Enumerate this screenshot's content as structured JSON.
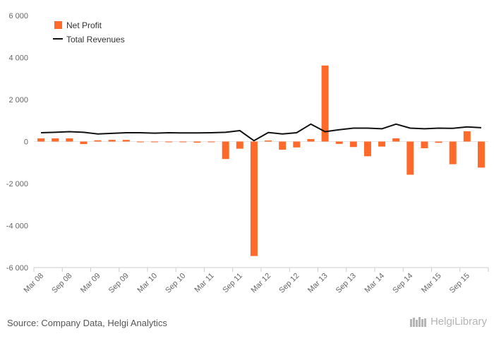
{
  "chart_data": {
    "type": "bar",
    "title": "",
    "xlabel": "",
    "ylabel": "",
    "ylim": [
      -6000,
      6000
    ],
    "yticks": [
      6000,
      4000,
      2000,
      0,
      -2000,
      -4000,
      -6000
    ],
    "ytick_labels": [
      "6 000",
      "4 000",
      "2 000",
      "0",
      "-2 000",
      "-4 000",
      "-6 000"
    ],
    "categories": [
      "Mar 08",
      "Jun 08",
      "Sep 08",
      "Dec 08",
      "Mar 09",
      "Jun 09",
      "Sep 09",
      "Dec 09",
      "Mar 10",
      "Jun 10",
      "Sep 10",
      "Dec 10",
      "Mar 11",
      "Jun 11",
      "Sep 11",
      "Dec 11",
      "Mar 12",
      "Jun 12",
      "Sep 12",
      "Dec 12",
      "Mar 13",
      "Jun 13",
      "Sep 13",
      "Dec 13",
      "Mar 14",
      "Jun 14",
      "Sep 14",
      "Dec 14",
      "Mar 15",
      "Jun 15",
      "Sep 15",
      "Dec 15"
    ],
    "x_tick_labels": [
      "Mar 08",
      "Sep 08",
      "Mar 09",
      "Sep 09",
      "Mar 10",
      "Sep 10",
      "Mar 11",
      "Sep 11",
      "Mar 12",
      "Sep 12",
      "Mar 13",
      "Sep 13",
      "Mar 14",
      "Sep 14",
      "Mar 15",
      "Sep 15"
    ],
    "series": [
      {
        "name": "Net Profit",
        "kind": "bar",
        "color": "#ff6a2b",
        "values": [
          150,
          150,
          150,
          -120,
          60,
          80,
          80,
          0,
          -20,
          -30,
          -30,
          -50,
          -30,
          -830,
          -340,
          -5450,
          50,
          -390,
          -280,
          120,
          3620,
          -110,
          -260,
          -700,
          -240,
          150,
          -1580,
          -320,
          -60,
          -1080,
          490,
          -1240
        ]
      },
      {
        "name": "Total Revenues",
        "kind": "line",
        "color": "#111111",
        "values": [
          420,
          440,
          470,
          440,
          360,
          390,
          420,
          420,
          400,
          420,
          410,
          410,
          420,
          440,
          520,
          40,
          430,
          360,
          420,
          830,
          470,
          560,
          640,
          640,
          610,
          830,
          640,
          610,
          640,
          630,
          700,
          660
        ]
      }
    ],
    "legend_position": "top-left"
  },
  "footer": {
    "source": "Source: Company Data, Helgi Analytics",
    "brand": "HelgiLibrary"
  }
}
